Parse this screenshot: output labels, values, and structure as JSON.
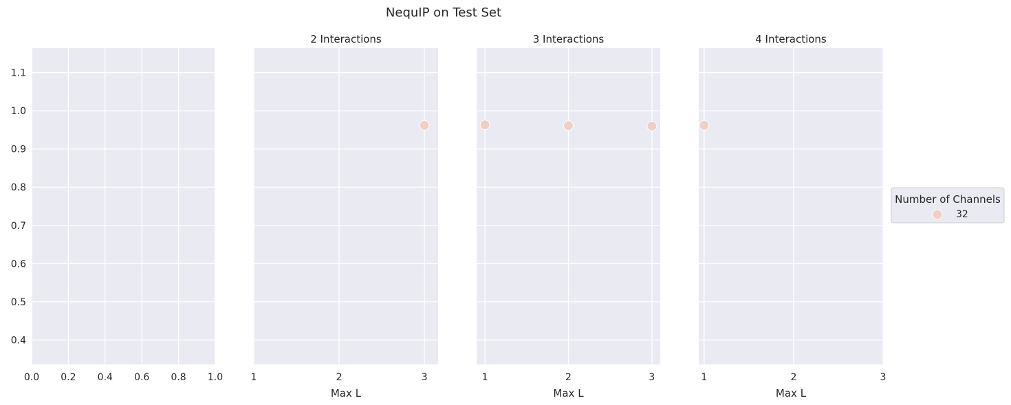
{
  "figure": {
    "title": "NequIP on Test Set"
  },
  "colors": {
    "panel_bg": "#eaeaf2",
    "grid": "#ffffff",
    "point": "#efcfc6",
    "text": "#262626"
  },
  "legend": {
    "title": "Number of Channels",
    "entries": [
      {
        "label": "32",
        "color": "#efcfc6"
      }
    ],
    "placement": "right"
  },
  "chart_data": [
    {
      "type": "scatter",
      "title": "",
      "xlabel": "",
      "ylabel": "",
      "xlim": [
        0,
        1
      ],
      "ylim": [
        0.336,
        1.164
      ],
      "xticks": [
        0.0,
        0.2,
        0.4,
        0.6,
        0.8,
        1.0
      ],
      "xtick_labels": [
        "0.0",
        "0.2",
        "0.4",
        "0.6",
        "0.8",
        "1.0"
      ],
      "yticks": [
        0.4,
        0.5,
        0.6,
        0.7,
        0.8,
        0.9,
        1.0,
        1.1
      ],
      "ytick_labels": [
        "0.4",
        "0.5",
        "0.6",
        "0.7",
        "0.8",
        "0.9",
        "1.0",
        "1.1"
      ],
      "grid": true,
      "series": []
    },
    {
      "type": "scatter",
      "title": "2 Interactions",
      "xlabel": "Max L",
      "ylabel": "",
      "xlim": [
        1,
        3.16
      ],
      "ylim": [
        0.336,
        1.164
      ],
      "xticks": [
        1,
        2,
        3
      ],
      "xtick_labels": [
        "1",
        "2",
        "3"
      ],
      "yticks": [
        0.4,
        0.5,
        0.6,
        0.7,
        0.8,
        0.9,
        1.0,
        1.1
      ],
      "ytick_labels": [],
      "grid": true,
      "series": [
        {
          "name": "32",
          "x": [
            3
          ],
          "y": [
            0.962
          ]
        }
      ]
    },
    {
      "type": "scatter",
      "title": "3 Interactions",
      "xlabel": "Max L",
      "ylabel": "",
      "xlim": [
        0.9,
        3.1
      ],
      "ylim": [
        0.336,
        1.164
      ],
      "xticks": [
        1,
        2,
        3
      ],
      "xtick_labels": [
        "1",
        "2",
        "3"
      ],
      "yticks": [
        0.4,
        0.5,
        0.6,
        0.7,
        0.8,
        0.9,
        1.0,
        1.1
      ],
      "ytick_labels": [],
      "grid": true,
      "series": [
        {
          "name": "32",
          "x": [
            1,
            2,
            3
          ],
          "y": [
            0.963,
            0.961,
            0.96
          ]
        }
      ]
    },
    {
      "type": "scatter",
      "title": "4 Interactions",
      "xlabel": "Max L",
      "ylabel": "",
      "xlim": [
        0.94,
        3
      ],
      "ylim": [
        0.336,
        1.164
      ],
      "xticks": [
        1,
        2,
        3
      ],
      "xtick_labels": [
        "1",
        "2",
        "3"
      ],
      "yticks": [
        0.4,
        0.5,
        0.6,
        0.7,
        0.8,
        0.9,
        1.0,
        1.1
      ],
      "ytick_labels": [],
      "grid": true,
      "series": [
        {
          "name": "32",
          "x": [
            1
          ],
          "y": [
            0.962
          ]
        }
      ]
    }
  ]
}
